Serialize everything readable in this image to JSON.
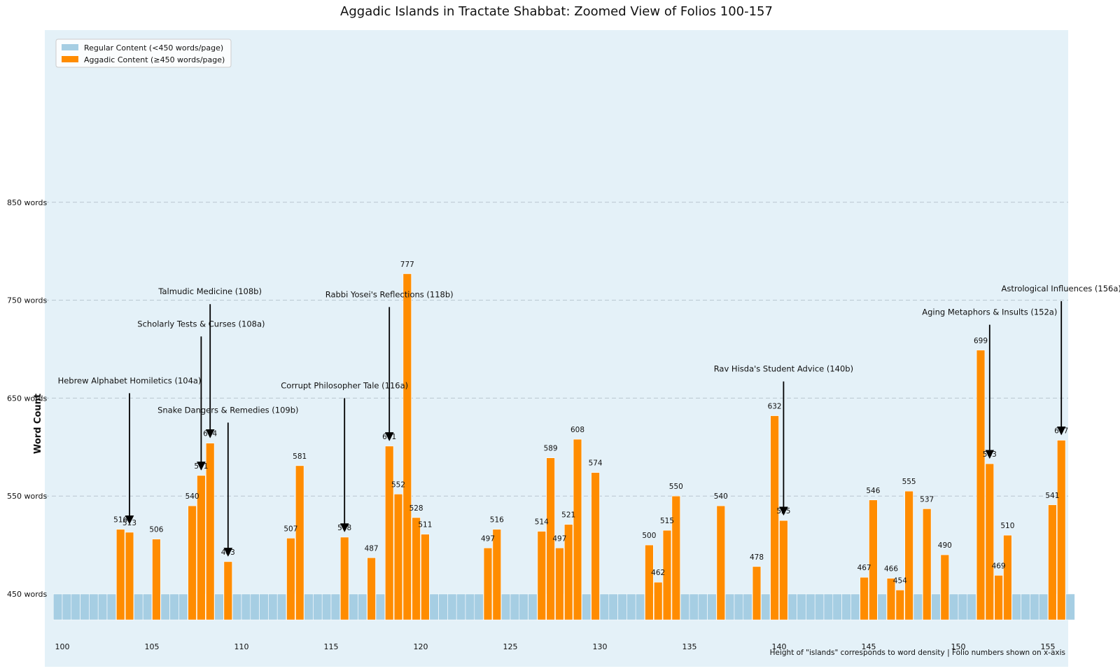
{
  "chart_data": {
    "type": "bar",
    "title": "Aggadic Islands in Tractate Shabbat: Zoomed View of Folios 100-157",
    "ylabel": "Word Count",
    "xlabel": "",
    "footnote": "Height of \"islands\" corresponds to word density | Folio numbers shown on x-axis",
    "threshold": 450,
    "ylim": [
      420,
      990
    ],
    "xlim": [
      99.5,
      156.5
    ],
    "grid": "horizontal dashed",
    "legend_position": "top-left",
    "y_ticks": [
      {
        "value": 450,
        "label": "450 words"
      },
      {
        "value": 550,
        "label": "550 words"
      },
      {
        "value": 650,
        "label": "650 words"
      },
      {
        "value": 750,
        "label": "750 words"
      },
      {
        "value": 850,
        "label": "850 words"
      }
    ],
    "x_ticks": [
      {
        "value": 100,
        "label": "100"
      },
      {
        "value": 105,
        "label": "105"
      },
      {
        "value": 110,
        "label": "110"
      },
      {
        "value": 115,
        "label": "115"
      },
      {
        "value": 120,
        "label": "120"
      },
      {
        "value": 125,
        "label": "125"
      },
      {
        "value": 130,
        "label": "130"
      },
      {
        "value": 135,
        "label": "135"
      },
      {
        "value": 140,
        "label": "140"
      },
      {
        "value": 145,
        "label": "145"
      },
      {
        "value": 150,
        "label": "150"
      },
      {
        "value": 155,
        "label": "155"
      }
    ],
    "series": [
      {
        "name": "Regular Content (<450 words/page)",
        "color": "#a6cee3"
      },
      {
        "name": "Aggadic Content (≥450 words/page)",
        "color": "#ff8c00"
      }
    ],
    "regular_value": 450,
    "regular_range": [
      100,
      156.5
    ],
    "aggadic_bars": [
      {
        "x": 103.25,
        "value": 516,
        "label": "516"
      },
      {
        "x": 103.75,
        "value": 513,
        "label": "513"
      },
      {
        "x": 105.25,
        "value": 506,
        "label": "506"
      },
      {
        "x": 107.25,
        "value": 540,
        "label": "540"
      },
      {
        "x": 107.75,
        "value": 571,
        "label": "571"
      },
      {
        "x": 108.25,
        "value": 604,
        "label": "604"
      },
      {
        "x": 109.25,
        "value": 483,
        "label": "483"
      },
      {
        "x": 112.75,
        "value": 507,
        "label": "507"
      },
      {
        "x": 113.25,
        "value": 581,
        "label": "581"
      },
      {
        "x": 115.75,
        "value": 508,
        "label": "508"
      },
      {
        "x": 117.25,
        "value": 487,
        "label": "487"
      },
      {
        "x": 118.25,
        "value": 601,
        "label": "601"
      },
      {
        "x": 118.75,
        "value": 552,
        "label": "552"
      },
      {
        "x": 119.25,
        "value": 777,
        "label": "777"
      },
      {
        "x": 119.75,
        "value": 528,
        "label": "528"
      },
      {
        "x": 120.25,
        "value": 511,
        "label": "511"
      },
      {
        "x": 123.75,
        "value": 497,
        "label": "497"
      },
      {
        "x": 124.25,
        "value": 516,
        "label": "516"
      },
      {
        "x": 126.75,
        "value": 514,
        "label": "514"
      },
      {
        "x": 127.25,
        "value": 589,
        "label": "589"
      },
      {
        "x": 127.75,
        "value": 497,
        "label": "497"
      },
      {
        "x": 128.25,
        "value": 521,
        "label": "521"
      },
      {
        "x": 128.75,
        "value": 608,
        "label": "608"
      },
      {
        "x": 129.75,
        "value": 574,
        "label": "574"
      },
      {
        "x": 132.75,
        "value": 500,
        "label": "500"
      },
      {
        "x": 133.25,
        "value": 462,
        "label": "462"
      },
      {
        "x": 133.75,
        "value": 515,
        "label": "515"
      },
      {
        "x": 134.25,
        "value": 550,
        "label": "550"
      },
      {
        "x": 136.75,
        "value": 540,
        "label": "540"
      },
      {
        "x": 138.75,
        "value": 478,
        "label": "478"
      },
      {
        "x": 139.75,
        "value": 632,
        "label": "632"
      },
      {
        "x": 140.25,
        "value": 525,
        "label": "525"
      },
      {
        "x": 144.75,
        "value": 467,
        "label": "467"
      },
      {
        "x": 145.25,
        "value": 546,
        "label": "546"
      },
      {
        "x": 146.25,
        "value": 466,
        "label": "466"
      },
      {
        "x": 146.75,
        "value": 454,
        "label": "454"
      },
      {
        "x": 147.25,
        "value": 555,
        "label": "555"
      },
      {
        "x": 148.25,
        "value": 537,
        "label": "537"
      },
      {
        "x": 149.25,
        "value": 490,
        "label": "490"
      },
      {
        "x": 151.25,
        "value": 699,
        "label": "699"
      },
      {
        "x": 151.75,
        "value": 583,
        "label": "583"
      },
      {
        "x": 152.25,
        "value": 469,
        "label": "469"
      },
      {
        "x": 152.75,
        "value": 510,
        "label": "510"
      },
      {
        "x": 155.25,
        "value": 541,
        "label": "541"
      },
      {
        "x": 155.75,
        "value": 607,
        "label": "607"
      }
    ],
    "annotations": [
      {
        "text": "Hebrew Alphabet Homiletics (104a)",
        "x": 103.75,
        "y_text": 665,
        "y_tip": 522
      },
      {
        "text": "Scholarly Tests & Curses (108a)",
        "x": 107.75,
        "y_text": 723,
        "y_tip": 577
      },
      {
        "text": "Talmudic Medicine (108b)",
        "x": 108.25,
        "y_text": 756,
        "y_tip": 610
      },
      {
        "text": "Snake Dangers & Remedies (109b)",
        "x": 109.25,
        "y_text": 635,
        "y_tip": 489
      },
      {
        "text": "Corrupt Philosopher Tale (116a)",
        "x": 115.75,
        "y_text": 660,
        "y_tip": 514
      },
      {
        "text": "Rabbi Yosei's Reflections (118b)",
        "x": 118.25,
        "y_text": 753,
        "y_tip": 607
      },
      {
        "text": "Rav Hisda's Student Advice (140b)",
        "x": 140.25,
        "y_text": 677,
        "y_tip": 531
      },
      {
        "text": "Aging Metaphors & Insults (152a)",
        "x": 151.75,
        "y_text": 735,
        "y_tip": 589
      },
      {
        "text": "Astrological Influences (156a)",
        "x": 155.75,
        "y_text": 759,
        "y_tip": 613
      }
    ]
  }
}
